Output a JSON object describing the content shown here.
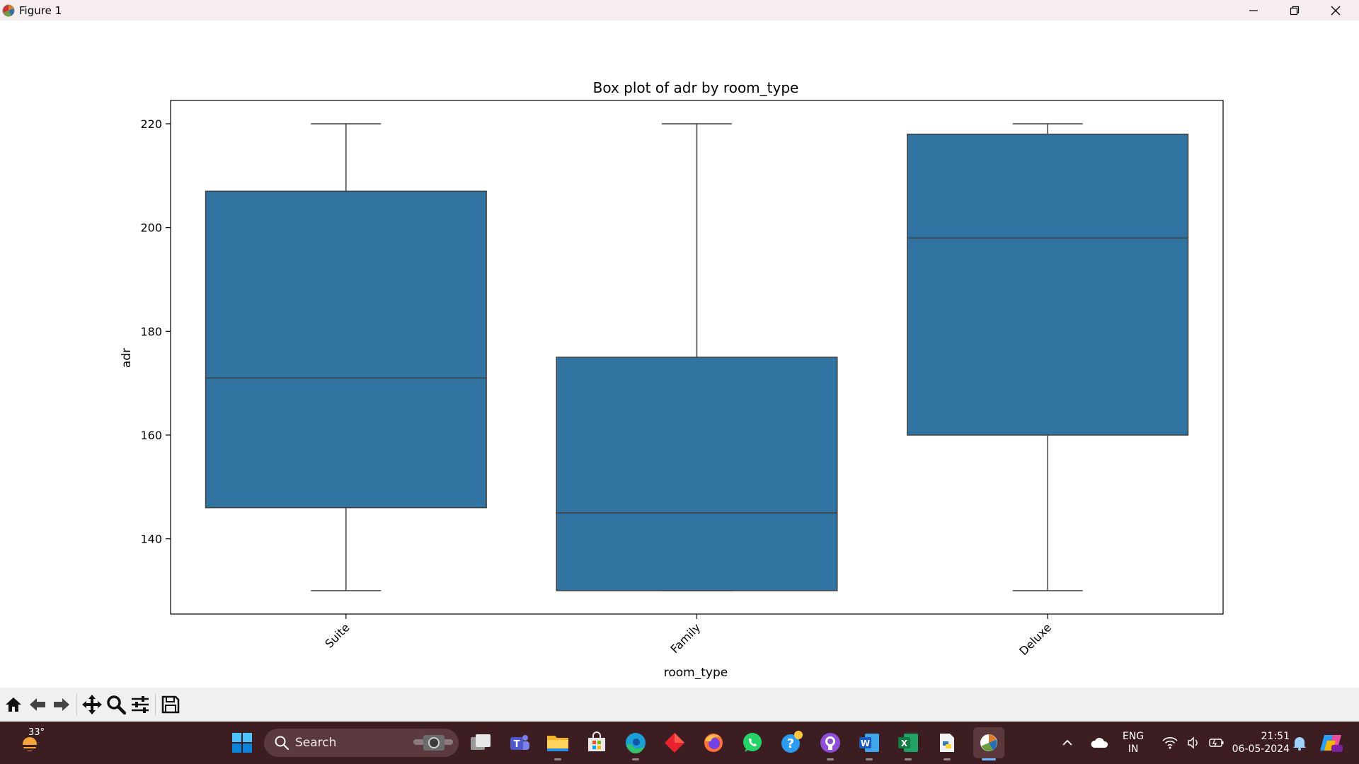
{
  "window": {
    "title": "Figure 1",
    "controls": [
      "minimize-icon",
      "restore-icon",
      "close-icon"
    ]
  },
  "chart_data": {
    "type": "box",
    "title": "Box plot of adr by room_type",
    "xlabel": "room_type",
    "ylabel": "adr",
    "categories": [
      "Suite",
      "Family",
      "Deluxe"
    ],
    "boxes": [
      {
        "category": "Suite",
        "whisker_low": 130,
        "q1": 146,
        "median": 171,
        "q3": 207,
        "whisker_high": 220
      },
      {
        "category": "Family",
        "whisker_low": 130,
        "q1": 130,
        "median": 145,
        "q3": 175,
        "whisker_high": 220
      },
      {
        "category": "Deluxe",
        "whisker_low": 130,
        "q1": 160,
        "median": 198,
        "q3": 218,
        "whisker_high": 220
      }
    ],
    "yticks": [
      140,
      160,
      180,
      200,
      220
    ],
    "ylim": [
      125.5,
      224.5
    ],
    "box_color": "#3274a1",
    "line_color": "#3f3f3f",
    "grid": false,
    "legend": "none"
  },
  "toolbar": {
    "buttons": [
      "home-icon",
      "back-icon",
      "forward-icon",
      "pan-icon",
      "zoom-icon",
      "configure-subplots-icon",
      "save-icon"
    ]
  },
  "taskbar": {
    "weather_temp": "33°",
    "search_placeholder": "Search",
    "apps": [
      "windows-start-icon",
      "task-view-icon",
      "teams-icon",
      "file-explorer-icon",
      "microsoft-store-icon",
      "edge-icon",
      "git-client-icon",
      "firefox-icon",
      "whatsapp-icon",
      "help-icon",
      "github-desktop-icon",
      "word-icon",
      "excel-icon",
      "python-launcher-icon",
      "matplotlib-figure-icon"
    ],
    "language_line1": "ENG",
    "language_line2": "IN",
    "time": "21:51",
    "date": "06-05-2024"
  }
}
